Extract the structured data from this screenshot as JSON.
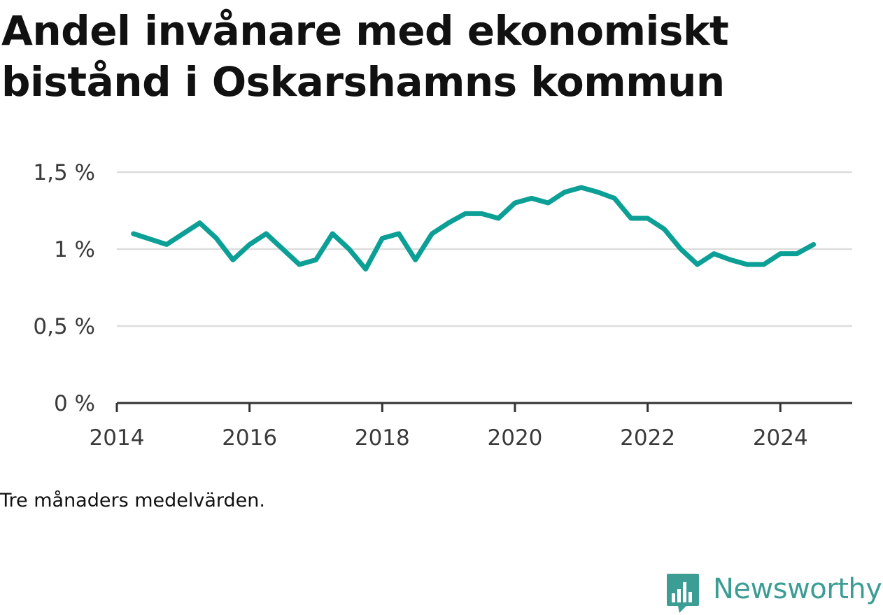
{
  "title": "Andel invånare med ekonomiskt bistånd i Oskarshamns kommun",
  "caption": "Tre månaders medelvärden.",
  "brand": {
    "name": "Newsworthy",
    "icon": "bar-chart-speech-bubble-icon",
    "color": "#3c9d95"
  },
  "colors": {
    "line": "#0c9f96",
    "grid": "#dddddd",
    "axis": "#333333",
    "text": "#111111"
  },
  "chart_data": {
    "type": "line",
    "title": "Andel invånare med ekonomiskt bistånd i Oskarshamns kommun",
    "xlabel": "",
    "ylabel": "",
    "x_ticks": [
      "2014",
      "2016",
      "2018",
      "2020",
      "2022",
      "2024"
    ],
    "y_ticks": [
      "0 %",
      "0,5 %",
      "1 %",
      "1,5 %"
    ],
    "y_tick_values": [
      0,
      0.5,
      1.0,
      1.5
    ],
    "ylim": [
      0,
      1.5
    ],
    "xlim": [
      "2014-01",
      "2025-02"
    ],
    "grid": true,
    "series": [
      {
        "values": [
          {
            "x": "2014-04",
            "y": 1.1
          },
          {
            "x": "2014-10",
            "y": 1.03
          },
          {
            "x": "2015-04",
            "y": 1.17
          },
          {
            "x": "2015-07",
            "y": 1.07
          },
          {
            "x": "2015-10",
            "y": 0.93
          },
          {
            "x": "2016-01",
            "y": 1.03
          },
          {
            "x": "2016-04",
            "y": 1.1
          },
          {
            "x": "2016-07",
            "y": 1.0
          },
          {
            "x": "2016-10",
            "y": 0.9
          },
          {
            "x": "2017-01",
            "y": 0.93
          },
          {
            "x": "2017-04",
            "y": 1.1
          },
          {
            "x": "2017-07",
            "y": 1.0
          },
          {
            "x": "2017-10",
            "y": 0.87
          },
          {
            "x": "2018-01",
            "y": 1.07
          },
          {
            "x": "2018-04",
            "y": 1.1
          },
          {
            "x": "2018-07",
            "y": 0.93
          },
          {
            "x": "2018-10",
            "y": 1.1
          },
          {
            "x": "2019-01",
            "y": 1.17
          },
          {
            "x": "2019-04",
            "y": 1.23
          },
          {
            "x": "2019-07",
            "y": 1.23
          },
          {
            "x": "2019-10",
            "y": 1.2
          },
          {
            "x": "2020-01",
            "y": 1.3
          },
          {
            "x": "2020-04",
            "y": 1.33
          },
          {
            "x": "2020-07",
            "y": 1.3
          },
          {
            "x": "2020-10",
            "y": 1.37
          },
          {
            "x": "2021-01",
            "y": 1.4
          },
          {
            "x": "2021-04",
            "y": 1.37
          },
          {
            "x": "2021-07",
            "y": 1.33
          },
          {
            "x": "2021-10",
            "y": 1.2
          },
          {
            "x": "2022-01",
            "y": 1.2
          },
          {
            "x": "2022-04",
            "y": 1.13
          },
          {
            "x": "2022-07",
            "y": 1.0
          },
          {
            "x": "2022-10",
            "y": 0.9
          },
          {
            "x": "2023-01",
            "y": 0.97
          },
          {
            "x": "2023-04",
            "y": 0.93
          },
          {
            "x": "2023-07",
            "y": 0.9
          },
          {
            "x": "2023-10",
            "y": 0.9
          },
          {
            "x": "2024-01",
            "y": 0.97
          },
          {
            "x": "2024-04",
            "y": 0.97
          },
          {
            "x": "2024-07",
            "y": 1.03
          }
        ]
      }
    ]
  }
}
